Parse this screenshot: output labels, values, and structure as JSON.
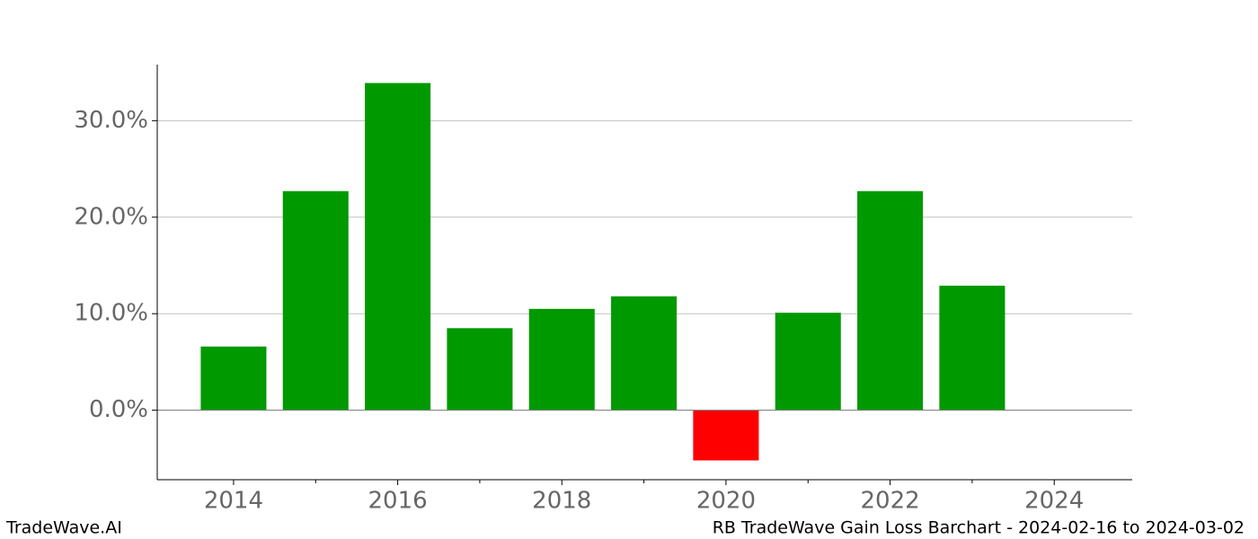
{
  "chart_data": {
    "type": "bar",
    "x": [
      2014,
      2015,
      2016,
      2017,
      2018,
      2019,
      2020,
      2021,
      2022,
      2023
    ],
    "values": [
      6.6,
      22.7,
      33.9,
      8.5,
      10.5,
      11.8,
      -5.2,
      10.1,
      22.7,
      12.9
    ],
    "color_positive": "#009900",
    "color_negative": "#ff0000",
    "xlim": [
      2013.07,
      2024.95
    ],
    "xticks": [
      2014,
      2016,
      2018,
      2020,
      2022,
      2024
    ],
    "xminorticks": [
      2015,
      2017,
      2019,
      2021,
      2023
    ],
    "ylim": [
      -7.2,
      35.8
    ],
    "yticks": [
      {
        "value": 0,
        "label": "0.0%"
      },
      {
        "value": 10,
        "label": "10.0%"
      },
      {
        "value": 20,
        "label": "20.0%"
      },
      {
        "value": 30,
        "label": "30.0%"
      }
    ],
    "grid": true,
    "footer_left": "TradeWave.AI",
    "footer_right": "RB TradeWave Gain Loss Barchart - 2024-02-16 to 2024-03-02"
  }
}
